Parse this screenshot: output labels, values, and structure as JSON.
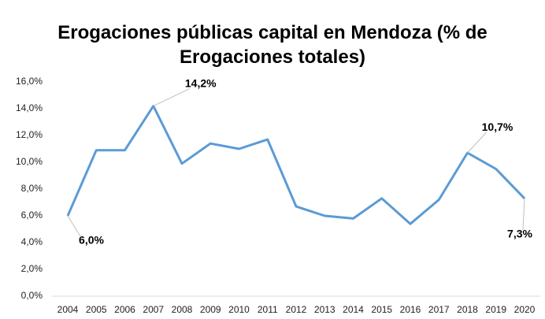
{
  "chart_data": {
    "type": "line",
    "title": "Erogaciones públicas capital en Mendoza (% de Erogaciones totales)",
    "categories": [
      "2004",
      "2005",
      "2006",
      "2007",
      "2008",
      "2009",
      "2010",
      "2011",
      "2012",
      "2013",
      "2014",
      "2015",
      "2016",
      "2017",
      "2018",
      "2019",
      "2020"
    ],
    "series": [
      {
        "name": "Erogaciones públicas capital",
        "color": "#5b9bd5",
        "values": [
          6.0,
          10.9,
          10.9,
          14.2,
          9.9,
          11.4,
          11.0,
          11.7,
          6.7,
          6.0,
          5.8,
          7.3,
          5.4,
          7.2,
          10.7,
          9.5,
          7.3
        ],
        "value_labels": [
          "6,0%",
          null,
          null,
          "14,2%",
          null,
          null,
          null,
          null,
          null,
          null,
          null,
          null,
          null,
          null,
          "10,7%",
          null,
          "7,3%"
        ]
      }
    ],
    "ylim": [
      0,
      16
    ],
    "yticks": [
      {
        "value": 0,
        "label": "0,0%"
      },
      {
        "value": 2,
        "label": "2,0%"
      },
      {
        "value": 4,
        "label": "4,0%"
      },
      {
        "value": 6,
        "label": "6,0%"
      },
      {
        "value": 8,
        "label": "8,0%"
      },
      {
        "value": 10,
        "label": "10,0%"
      },
      {
        "value": 12,
        "label": "12,0%"
      },
      {
        "value": 14,
        "label": "14,0%"
      },
      {
        "value": 16,
        "label": "16,0%"
      }
    ],
    "grid": false
  }
}
